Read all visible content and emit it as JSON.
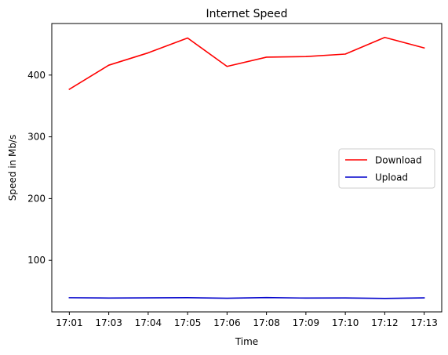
{
  "chart_data": {
    "type": "line",
    "title": "Internet Speed",
    "xlabel": "Time",
    "ylabel": "Speed in Mb/s",
    "categories": [
      "17:01",
      "17:03",
      "17:04",
      "17:05",
      "17:06",
      "17:08",
      "17:09",
      "17:10",
      "17:12",
      "17:13"
    ],
    "yticks": [
      100,
      200,
      300,
      400
    ],
    "ylim": [
      16.5,
      483.5
    ],
    "grid": false,
    "legend_position": "center-right",
    "series": [
      {
        "name": "Download",
        "color": "#ff0000",
        "values": [
          377,
          416,
          436,
          460,
          414,
          429,
          430,
          434,
          461,
          444
        ]
      },
      {
        "name": "Upload",
        "color": "#0000cc",
        "values": [
          39.5,
          39.0,
          39.2,
          39.6,
          38.6,
          39.7,
          38.9,
          39.1,
          38.3,
          39.3
        ]
      }
    ]
  }
}
